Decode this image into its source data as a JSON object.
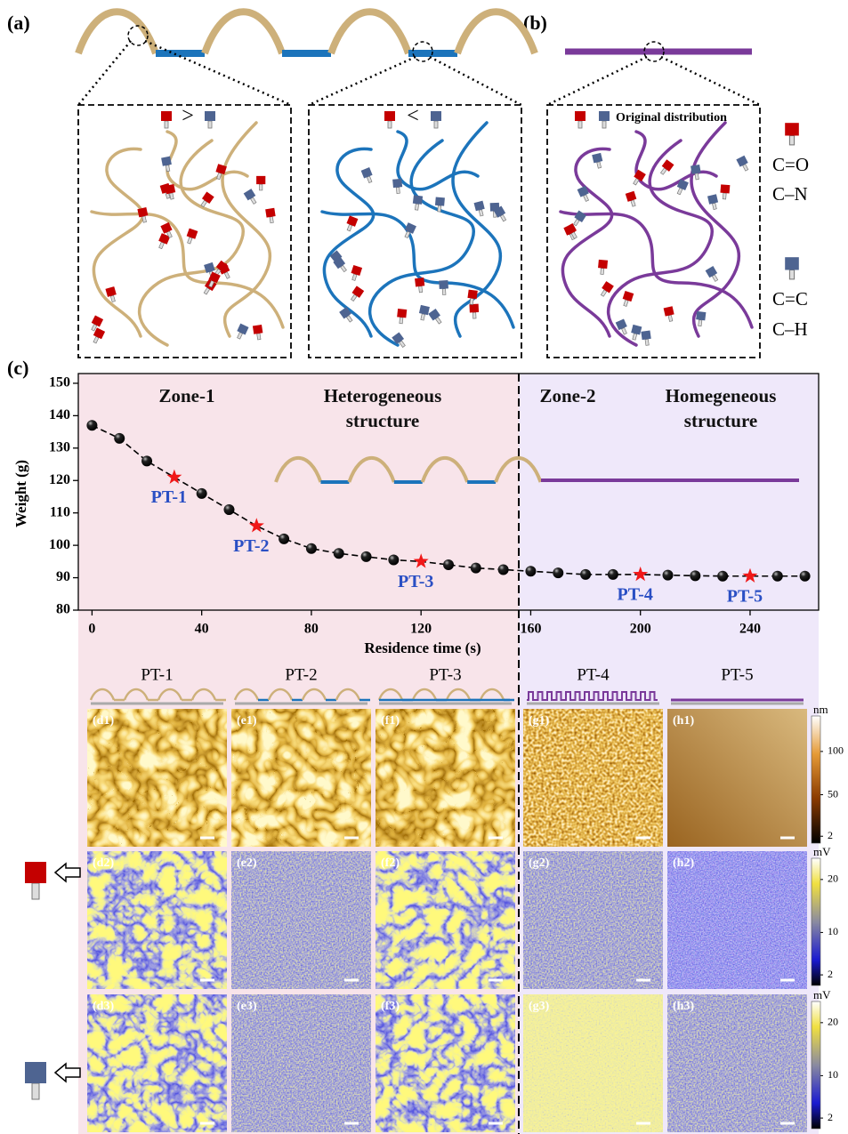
{
  "figure": {
    "labels": [
      "(a)",
      "(b)",
      "(c)"
    ]
  },
  "diagram": {
    "greater": ">",
    "less": "<",
    "original": "Original distribution",
    "groups": [
      "C=O",
      "C–N",
      "C=C",
      "C–H"
    ]
  },
  "chart_data": {
    "type": "line",
    "y_label": "Weight (g)",
    "x_label": "Residence time (s)",
    "x": [
      0,
      10,
      20,
      30,
      40,
      50,
      60,
      70,
      80,
      90,
      100,
      110,
      120,
      130,
      140,
      150,
      160,
      170,
      180,
      190,
      200,
      210,
      220,
      230,
      240,
      250,
      260
    ],
    "series": [
      {
        "color": "#000000",
        "values": [
          137,
          133,
          126,
          121,
          116,
          111,
          106,
          102,
          99,
          97.5,
          96.5,
          95.5,
          95,
          94,
          93,
          92.5,
          92,
          91.5,
          91,
          91,
          91,
          90.8,
          90.6,
          90.5,
          90.5,
          90.5,
          90.5
        ]
      }
    ],
    "point_labels": [
      null,
      null,
      null,
      "PT-1",
      null,
      null,
      "PT-2",
      null,
      null,
      null,
      null,
      null,
      "PT-3",
      null,
      null,
      null,
      null,
      null,
      null,
      null,
      "PT-4",
      null,
      null,
      null,
      "PT-5",
      null,
      null
    ],
    "xlim": [
      -5,
      265
    ],
    "xticks": [
      0,
      40,
      80,
      120,
      160,
      200,
      240
    ],
    "ylim": [
      80,
      153
    ],
    "yticks": [
      80,
      90,
      100,
      110,
      120,
      130,
      140,
      150
    ],
    "annotations": [
      "Zone-1",
      "Heterogeneous structure",
      "Zone-2",
      "Homegeneous structure"
    ]
  },
  "images": {
    "columns": [
      "PT-1",
      "PT-2",
      "PT-3",
      "PT-4",
      "PT-5"
    ],
    "panels": [
      [
        "(d1)",
        "(e1)",
        "(f1)",
        "(g1)",
        "(h1)"
      ],
      [
        "(d2)",
        "(e2)",
        "(f2)",
        "(g2)",
        "(h2)"
      ],
      [
        "(d3)",
        "(e3)",
        "(f3)",
        "(g3)",
        "(h3)"
      ]
    ],
    "colorbars": [
      {
        "unit": "nm",
        "ticks": [
          100,
          50,
          2
        ],
        "lim": [
          -6,
          141
        ]
      },
      {
        "unit": "mV",
        "ticks": [
          20,
          10,
          2
        ],
        "lim": [
          0,
          24
        ]
      },
      {
        "unit": "mV",
        "ticks": [
          20,
          10,
          2
        ],
        "lim": [
          0,
          24
        ]
      }
    ]
  }
}
